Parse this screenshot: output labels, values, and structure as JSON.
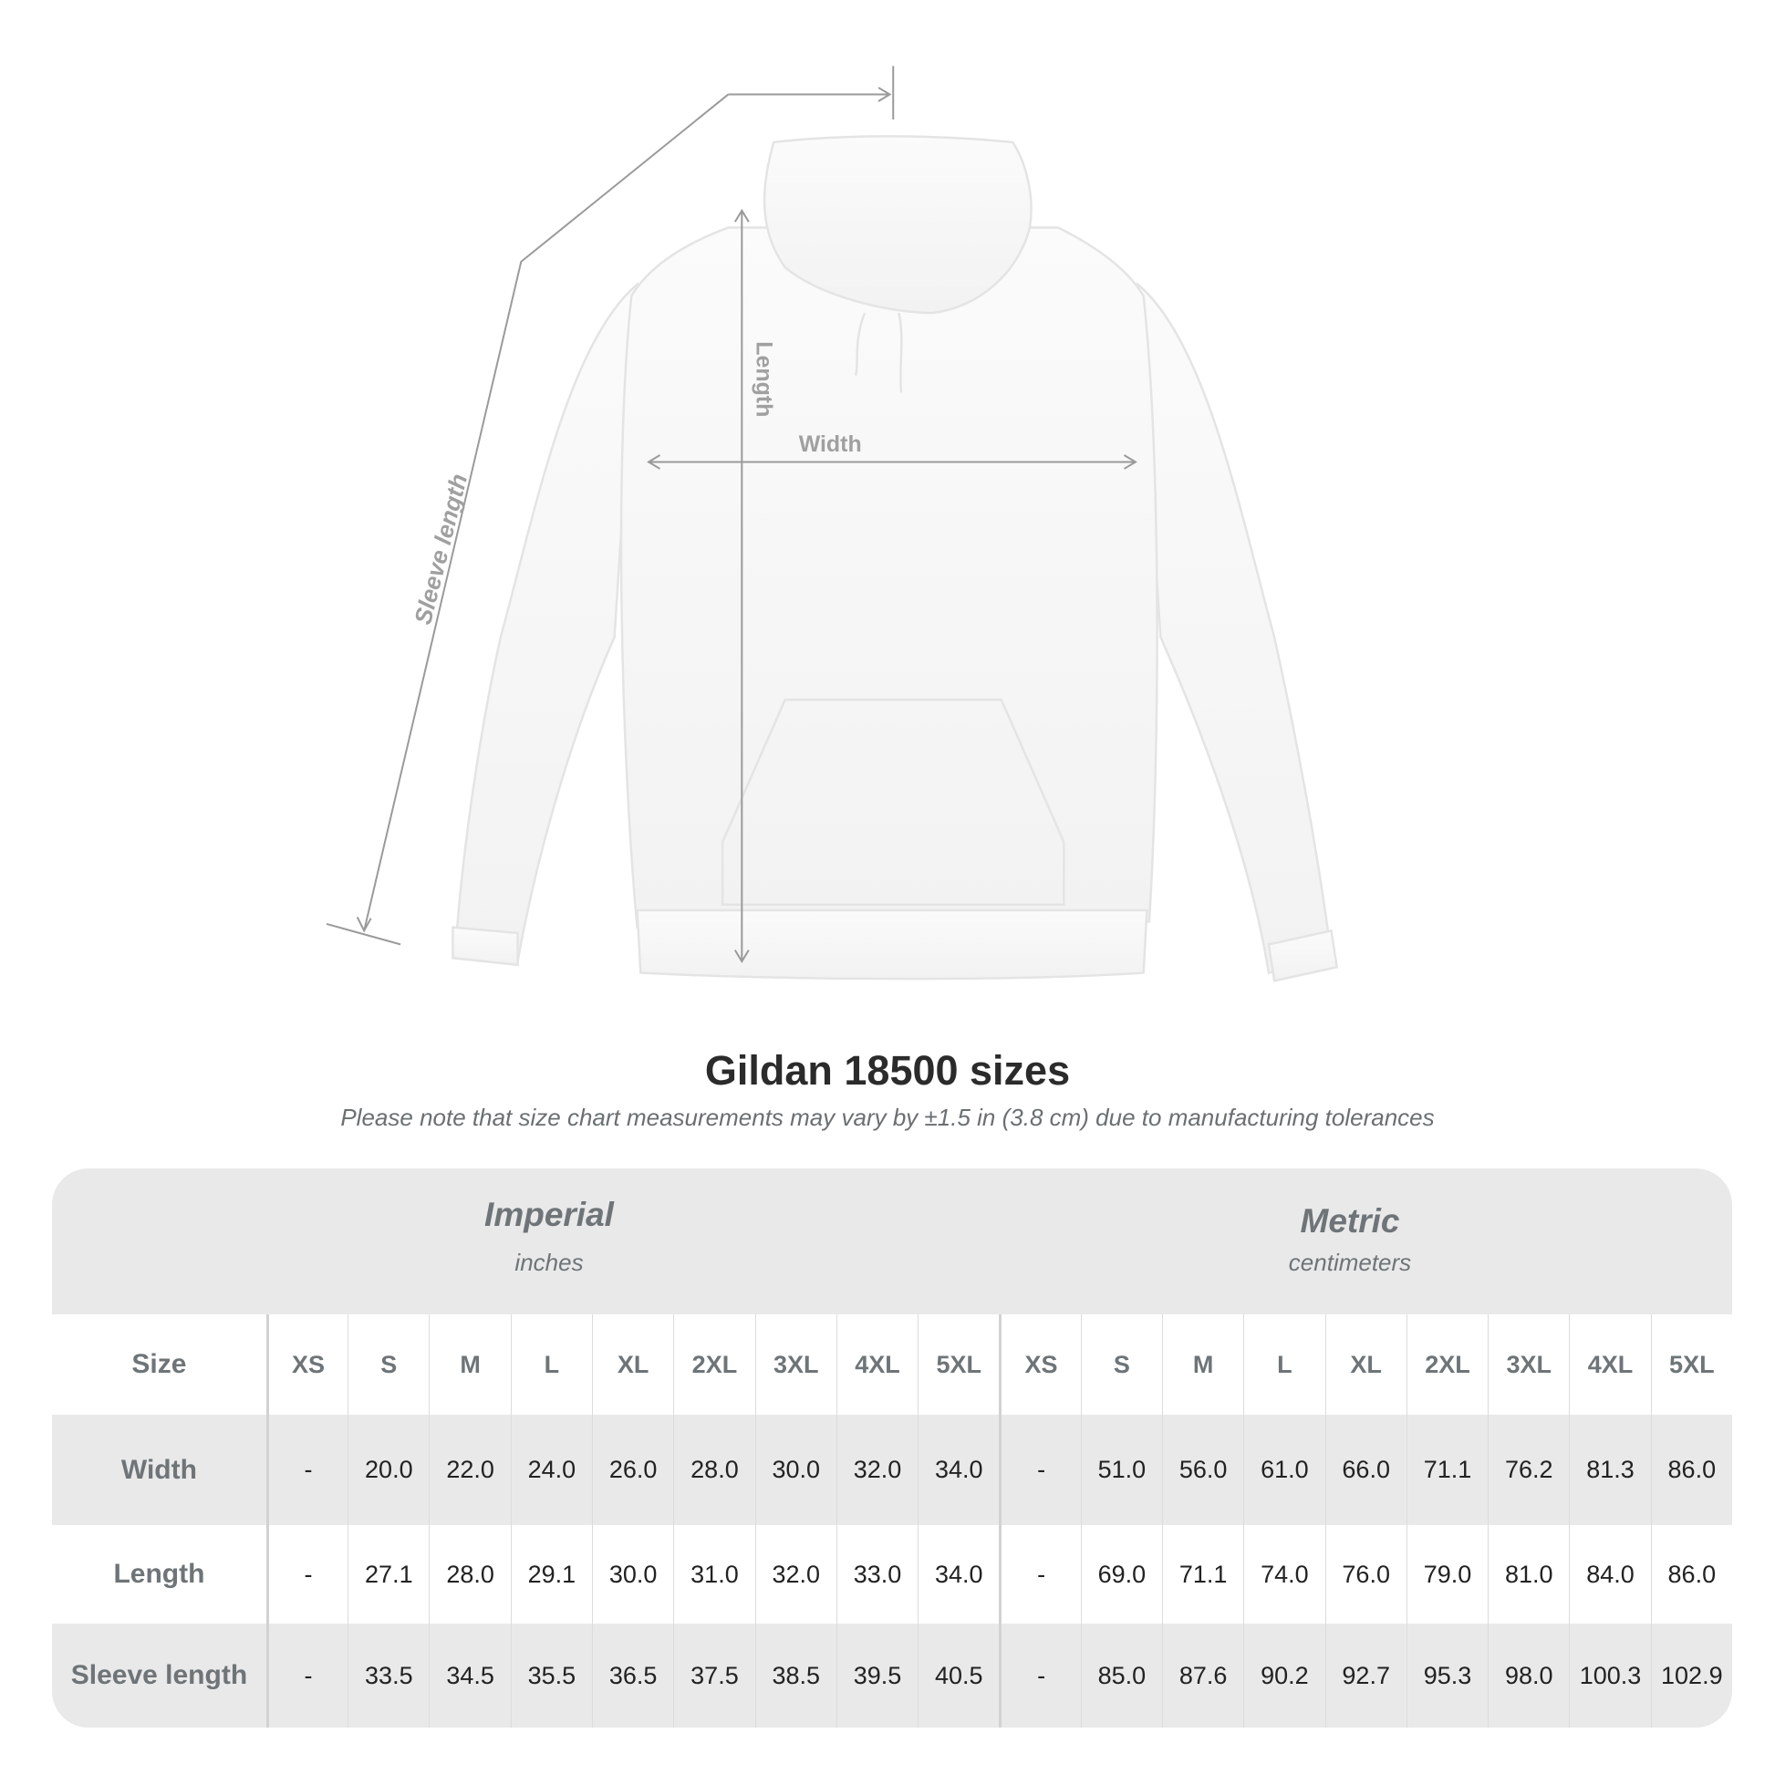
{
  "diagram": {
    "labels": {
      "sleeve_length": "Sleeve length",
      "length": "Length",
      "width": "Width"
    },
    "line_color": "#9a9a9a"
  },
  "title": "Gildan 18500 sizes",
  "subtitle": "Please note that size chart measurements may vary by ±1.5 in (3.8 cm) due to manufacturing tolerances",
  "table": {
    "imperial": {
      "title": "Imperial",
      "unit": "inches"
    },
    "metric": {
      "title": "Metric",
      "unit": "centimeters"
    },
    "size_label": "Size",
    "sizes": [
      "XS",
      "S",
      "M",
      "L",
      "XL",
      "2XL",
      "3XL",
      "4XL",
      "5XL"
    ],
    "rows": [
      {
        "label": "Width",
        "imperial": [
          "-",
          "20.0",
          "22.0",
          "24.0",
          "26.0",
          "28.0",
          "30.0",
          "32.0",
          "34.0"
        ],
        "metric": [
          "-",
          "51.0",
          "56.0",
          "61.0",
          "66.0",
          "71.1",
          "76.2",
          "81.3",
          "86.0"
        ]
      },
      {
        "label": "Length",
        "imperial": [
          "-",
          "27.1",
          "28.0",
          "29.1",
          "30.0",
          "31.0",
          "32.0",
          "33.0",
          "34.0"
        ],
        "metric": [
          "-",
          "69.0",
          "71.1",
          "74.0",
          "76.0",
          "79.0",
          "81.0",
          "84.0",
          "86.0"
        ]
      },
      {
        "label": "Sleeve length",
        "imperial": [
          "-",
          "33.5",
          "34.5",
          "35.5",
          "36.5",
          "37.5",
          "38.5",
          "39.5",
          "40.5"
        ],
        "metric": [
          "-",
          "85.0",
          "87.6",
          "90.2",
          "92.7",
          "95.3",
          "98.0",
          "100.3",
          "102.9"
        ]
      }
    ]
  }
}
